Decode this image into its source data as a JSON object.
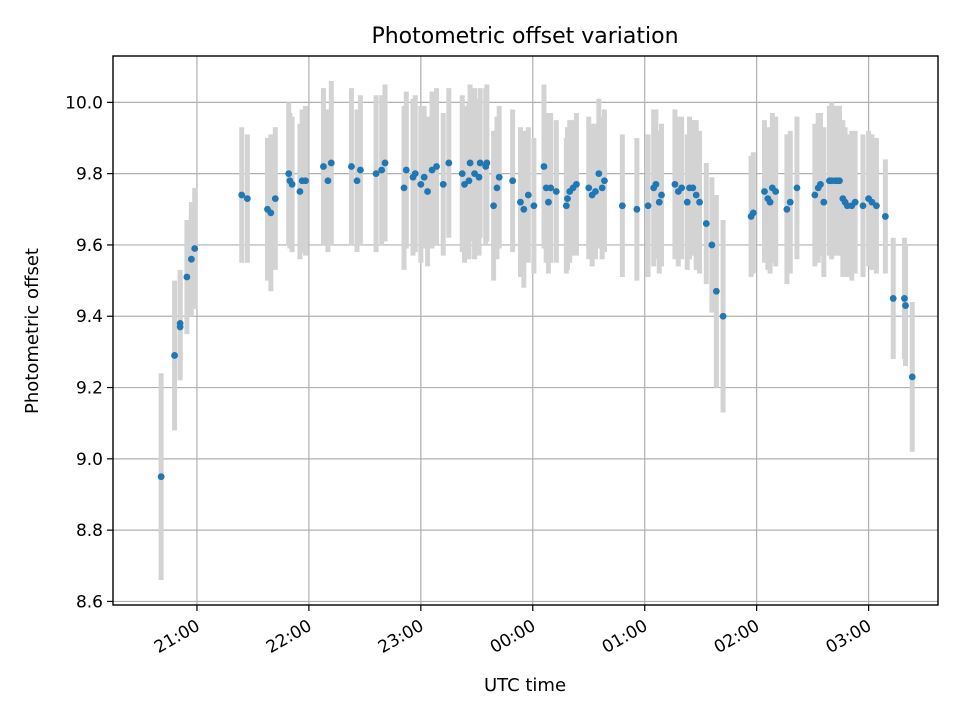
{
  "chart_data": {
    "type": "scatter",
    "title": "Photometric offset variation",
    "xlabel": "UTC time",
    "ylabel": "Photometric offset",
    "x_unit": "UTC time (hours past 00:00 on the first day; 24+ = following day)",
    "xlim_hours": [
      20.25,
      27.62
    ],
    "ylim": [
      8.59,
      10.13
    ],
    "grid": true,
    "colors": {
      "point": "#1f77b4",
      "errorbar": "#d3d3d3"
    },
    "xticks": [
      {
        "hour": 21,
        "label": "21:00"
      },
      {
        "hour": 22,
        "label": "22:00"
      },
      {
        "hour": 23,
        "label": "23:00"
      },
      {
        "hour": 24,
        "label": "00:00"
      },
      {
        "hour": 25,
        "label": "01:00"
      },
      {
        "hour": 26,
        "label": "02:00"
      },
      {
        "hour": 27,
        "label": "03:00"
      }
    ],
    "yticks": [
      {
        "value": 8.6,
        "label": "8.6"
      },
      {
        "value": 8.8,
        "label": "8.8"
      },
      {
        "value": 9.0,
        "label": "9.0"
      },
      {
        "value": 9.2,
        "label": "9.2"
      },
      {
        "value": 9.4,
        "label": "9.4"
      },
      {
        "value": 9.6,
        "label": "9.6"
      },
      {
        "value": 9.8,
        "label": "9.8"
      },
      {
        "value": 10.0,
        "label": "10.0"
      }
    ],
    "series": [
      {
        "points": [
          [
            20.68,
            8.95,
            0.29
          ],
          [
            20.8,
            9.29,
            0.21
          ],
          [
            20.85,
            9.37,
            0.15
          ],
          [
            20.85,
            9.38,
            0.15
          ],
          [
            20.91,
            9.51,
            0.16
          ],
          [
            20.95,
            9.56,
            0.16
          ],
          [
            20.98,
            9.59,
            0.17
          ],
          [
            21.4,
            9.74,
            0.19
          ],
          [
            21.45,
            9.73,
            0.18
          ],
          [
            21.63,
            9.7,
            0.2
          ],
          [
            21.66,
            9.69,
            0.22
          ],
          [
            21.7,
            9.73,
            0.2
          ],
          [
            21.82,
            9.8,
            0.2
          ],
          [
            21.83,
            9.78,
            0.19
          ],
          [
            21.85,
            9.77,
            0.19
          ],
          [
            21.92,
            9.75,
            0.19
          ],
          [
            21.94,
            9.78,
            0.2
          ],
          [
            21.97,
            9.78,
            0.21
          ],
          [
            22.13,
            9.82,
            0.22
          ],
          [
            22.17,
            9.78,
            0.2
          ],
          [
            22.2,
            9.83,
            0.23
          ],
          [
            22.38,
            9.82,
            0.22
          ],
          [
            22.43,
            9.78,
            0.2
          ],
          [
            22.46,
            9.81,
            0.21
          ],
          [
            22.6,
            9.8,
            0.22
          ],
          [
            22.65,
            9.81,
            0.21
          ],
          [
            22.68,
            9.83,
            0.22
          ],
          [
            22.85,
            9.76,
            0.23
          ],
          [
            22.87,
            9.81,
            0.22
          ],
          [
            22.93,
            9.79,
            0.22
          ],
          [
            22.95,
            9.8,
            0.22
          ],
          [
            23.0,
            9.77,
            0.22
          ],
          [
            23.03,
            9.79,
            0.2
          ],
          [
            23.06,
            9.75,
            0.21
          ],
          [
            23.1,
            9.81,
            0.22
          ],
          [
            23.14,
            9.82,
            0.22
          ],
          [
            23.2,
            9.77,
            0.2
          ],
          [
            23.25,
            9.83,
            0.21
          ],
          [
            23.37,
            9.8,
            0.22
          ],
          [
            23.39,
            9.77,
            0.22
          ],
          [
            23.43,
            9.78,
            0.22
          ],
          [
            23.44,
            9.83,
            0.22
          ],
          [
            23.48,
            9.8,
            0.24
          ],
          [
            23.52,
            9.79,
            0.22
          ],
          [
            23.53,
            9.83,
            0.21
          ],
          [
            23.58,
            9.82,
            0.22
          ],
          [
            23.59,
            9.83,
            0.22
          ],
          [
            23.65,
            9.71,
            0.21
          ],
          [
            23.68,
            9.76,
            0.2
          ],
          [
            23.7,
            9.79,
            0.2
          ],
          [
            23.82,
            9.78,
            0.2
          ],
          [
            23.89,
            9.72,
            0.21
          ],
          [
            23.92,
            9.7,
            0.22
          ],
          [
            23.96,
            9.74,
            0.19
          ],
          [
            24.01,
            9.71,
            0.19
          ],
          [
            24.1,
            9.82,
            0.23
          ],
          [
            24.12,
            9.76,
            0.21
          ],
          [
            24.14,
            9.72,
            0.2
          ],
          [
            24.16,
            9.76,
            0.21
          ],
          [
            24.21,
            9.75,
            0.2
          ],
          [
            24.3,
            9.71,
            0.19
          ],
          [
            24.31,
            9.73,
            0.2
          ],
          [
            24.33,
            9.75,
            0.2
          ],
          [
            24.36,
            9.76,
            0.19
          ],
          [
            24.39,
            9.77,
            0.2
          ],
          [
            24.5,
            9.76,
            0.2
          ],
          [
            24.53,
            9.74,
            0.2
          ],
          [
            24.56,
            9.75,
            0.19
          ],
          [
            24.59,
            9.8,
            0.21
          ],
          [
            24.62,
            9.76,
            0.2
          ],
          [
            24.64,
            9.78,
            0.2
          ],
          [
            24.8,
            9.71,
            0.2
          ],
          [
            24.93,
            9.7,
            0.2
          ],
          [
            25.03,
            9.71,
            0.2
          ],
          [
            25.08,
            9.76,
            0.22
          ],
          [
            25.1,
            9.77,
            0.21
          ],
          [
            25.13,
            9.72,
            0.2
          ],
          [
            25.15,
            9.74,
            0.2
          ],
          [
            25.27,
            9.77,
            0.21
          ],
          [
            25.3,
            9.75,
            0.21
          ],
          [
            25.33,
            9.76,
            0.2
          ],
          [
            25.38,
            9.72,
            0.19
          ],
          [
            25.4,
            9.76,
            0.2
          ],
          [
            25.43,
            9.76,
            0.19
          ],
          [
            25.46,
            9.74,
            0.21
          ],
          [
            25.49,
            9.72,
            0.2
          ],
          [
            25.55,
            9.66,
            0.17
          ],
          [
            25.6,
            9.6,
            0.19
          ],
          [
            25.64,
            9.47,
            0.27
          ],
          [
            25.7,
            9.4,
            0.27
          ],
          [
            25.95,
            9.68,
            0.17
          ],
          [
            25.97,
            9.69,
            0.17
          ],
          [
            26.07,
            9.75,
            0.2
          ],
          [
            26.1,
            9.73,
            0.2
          ],
          [
            26.12,
            9.72,
            0.2
          ],
          [
            26.14,
            9.76,
            0.21
          ],
          [
            26.17,
            9.75,
            0.21
          ],
          [
            26.27,
            9.7,
            0.21
          ],
          [
            26.3,
            9.72,
            0.2
          ],
          [
            26.36,
            9.76,
            0.2
          ],
          [
            26.52,
            9.74,
            0.2
          ],
          [
            26.55,
            9.76,
            0.21
          ],
          [
            26.57,
            9.77,
            0.2
          ],
          [
            26.6,
            9.72,
            0.21
          ],
          [
            26.65,
            9.78,
            0.21
          ],
          [
            26.67,
            9.78,
            0.22
          ],
          [
            26.7,
            9.78,
            0.21
          ],
          [
            26.72,
            9.78,
            0.21
          ],
          [
            26.74,
            9.78,
            0.21
          ],
          [
            26.77,
            9.73,
            0.22
          ],
          [
            26.79,
            9.72,
            0.21
          ],
          [
            26.81,
            9.71,
            0.2
          ],
          [
            26.85,
            9.71,
            0.21
          ],
          [
            26.88,
            9.72,
            0.2
          ],
          [
            26.95,
            9.71,
            0.2
          ],
          [
            27.0,
            9.73,
            0.19
          ],
          [
            27.03,
            9.72,
            0.19
          ],
          [
            27.07,
            9.71,
            0.19
          ],
          [
            27.15,
            9.68,
            0.16
          ],
          [
            27.22,
            9.45,
            0.17
          ],
          [
            27.32,
            9.45,
            0.17
          ],
          [
            27.33,
            9.43,
            0.17
          ],
          [
            27.39,
            9.23,
            0.21
          ]
        ]
      }
    ]
  }
}
